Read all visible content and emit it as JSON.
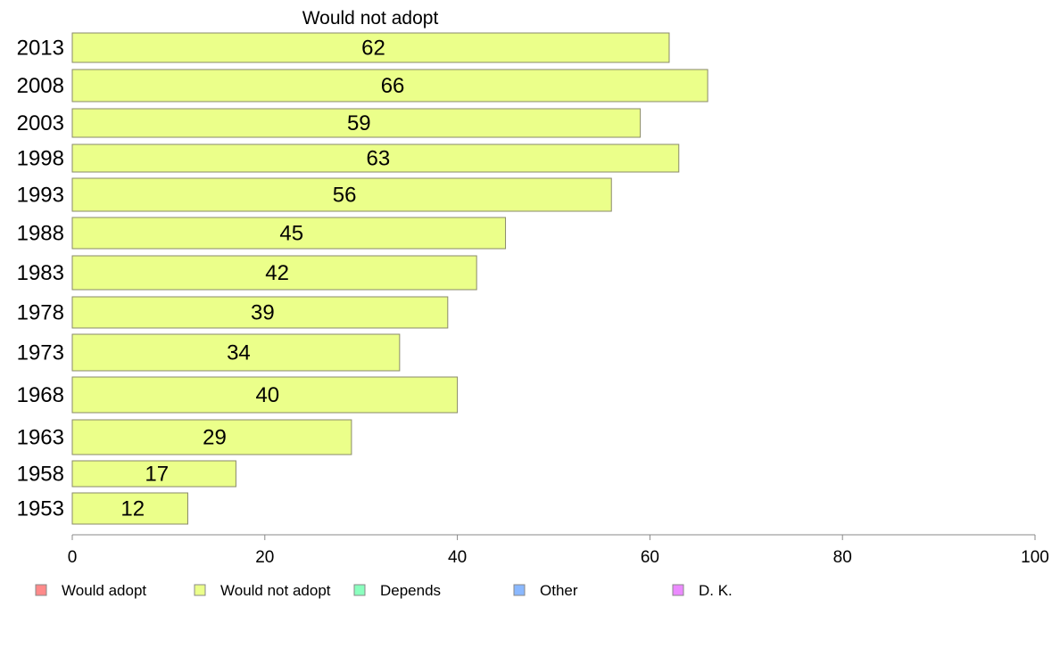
{
  "chart_data": {
    "type": "bar",
    "orientation": "horizontal",
    "title": "Would not adopt",
    "categories": [
      "2013",
      "2008",
      "2003",
      "1998",
      "1993",
      "1988",
      "1983",
      "1978",
      "1973",
      "1968",
      "1963",
      "1958",
      "1953"
    ],
    "series": [
      {
        "name": "Would not adopt",
        "values": [
          62,
          66,
          59,
          63,
          56,
          45,
          42,
          39,
          34,
          40,
          29,
          17,
          12
        ],
        "color": "#ebff8a"
      }
    ],
    "xlim": [
      0,
      100
    ],
    "xticks": [
      0,
      20,
      40,
      60,
      80,
      100
    ],
    "grid": false,
    "legend_position": "bottom",
    "legend": [
      {
        "label": "Would adopt",
        "color": "#ff8a8a"
      },
      {
        "label": "Would not adopt",
        "color": "#ebff8a"
      },
      {
        "label": "Depends",
        "color": "#8affbe"
      },
      {
        "label": "Other",
        "color": "#8ab8ff"
      },
      {
        "label": "D. K.",
        "color": "#eb8aff"
      }
    ]
  }
}
